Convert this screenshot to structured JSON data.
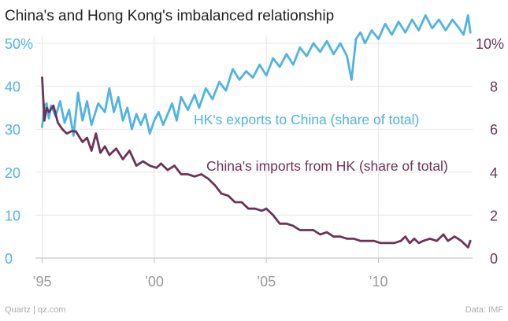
{
  "chart_data": {
    "type": "line",
    "title": "China's and Hong Kong's imbalanced relationship",
    "x_range": [
      1994.7,
      2014.2
    ],
    "x_ticks": [
      {
        "value": 1995,
        "label": "’95"
      },
      {
        "value": 2000,
        "label": "’00"
      },
      {
        "value": 2005,
        "label": "’05"
      },
      {
        "value": 2010,
        "label": "’10"
      }
    ],
    "y_left": {
      "range": [
        0,
        50
      ],
      "ticks": [
        0,
        10,
        20,
        30,
        40
      ],
      "top_label": "50%",
      "color": "#4FB3E3"
    },
    "y_right": {
      "range": [
        0,
        10
      ],
      "ticks": [
        0,
        2,
        4,
        6,
        8
      ],
      "top_label": "10%",
      "color": "#6B3354"
    },
    "grid": true,
    "series": [
      {
        "name": "HK's exports to China (share of total)",
        "axis": "left",
        "color": "#4FB3E3",
        "points": [
          [
            1995.0,
            30.5
          ],
          [
            1995.1,
            35.5
          ],
          [
            1995.2,
            36.0
          ],
          [
            1995.3,
            32.5
          ],
          [
            1995.4,
            35.5
          ],
          [
            1995.6,
            33.0
          ],
          [
            1995.8,
            36.5
          ],
          [
            1996.0,
            31.5
          ],
          [
            1996.2,
            34.5
          ],
          [
            1996.4,
            28.5
          ],
          [
            1996.6,
            38.5
          ],
          [
            1996.8,
            32.0
          ],
          [
            1997.0,
            36.5
          ],
          [
            1997.2,
            31.0
          ],
          [
            1997.5,
            36.0
          ],
          [
            1997.8,
            34.0
          ],
          [
            1998.0,
            39.5
          ],
          [
            1998.2,
            34.0
          ],
          [
            1998.4,
            37.5
          ],
          [
            1998.6,
            32.0
          ],
          [
            1998.8,
            35.0
          ],
          [
            1999.0,
            30.0
          ],
          [
            1999.2,
            33.5
          ],
          [
            1999.4,
            31.0
          ],
          [
            1999.6,
            33.5
          ],
          [
            1999.8,
            29.0
          ],
          [
            2000.0,
            32.0
          ],
          [
            2000.2,
            34.0
          ],
          [
            2000.4,
            31.0
          ],
          [
            2000.6,
            33.5
          ],
          [
            2000.8,
            36.0
          ],
          [
            2001.0,
            32.0
          ],
          [
            2001.2,
            37.5
          ],
          [
            2001.5,
            34.5
          ],
          [
            2001.8,
            38.0
          ],
          [
            2002.0,
            35.0
          ],
          [
            2002.3,
            39.5
          ],
          [
            2002.6,
            37.0
          ],
          [
            2002.9,
            41.0
          ],
          [
            2003.2,
            39.0
          ],
          [
            2003.5,
            44.0
          ],
          [
            2003.8,
            41.5
          ],
          [
            2004.1,
            43.5
          ],
          [
            2004.4,
            42.0
          ],
          [
            2004.7,
            45.0
          ],
          [
            2005.0,
            42.5
          ],
          [
            2005.3,
            46.5
          ],
          [
            2005.6,
            44.5
          ],
          [
            2005.9,
            47.5
          ],
          [
            2006.2,
            45.0
          ],
          [
            2006.5,
            49.0
          ],
          [
            2006.8,
            47.0
          ],
          [
            2007.1,
            50.0
          ],
          [
            2007.4,
            48.0
          ],
          [
            2007.7,
            50.5
          ],
          [
            2008.0,
            47.5
          ],
          [
            2008.3,
            50.0
          ],
          [
            2008.6,
            47.0
          ],
          [
            2008.8,
            41.5
          ],
          [
            2009.0,
            51.0
          ],
          [
            2009.2,
            52.5
          ],
          [
            2009.4,
            50.0
          ],
          [
            2009.7,
            53.0
          ],
          [
            2010.0,
            51.0
          ],
          [
            2010.3,
            54.5
          ],
          [
            2010.6,
            52.0
          ],
          [
            2010.9,
            55.0
          ],
          [
            2011.2,
            52.5
          ],
          [
            2011.5,
            55.5
          ],
          [
            2011.8,
            53.0
          ],
          [
            2012.1,
            56.5
          ],
          [
            2012.4,
            53.5
          ],
          [
            2012.7,
            55.5
          ],
          [
            2013.0,
            53.0
          ],
          [
            2013.3,
            55.5
          ],
          [
            2013.6,
            53.5
          ],
          [
            2013.8,
            52.0
          ],
          [
            2014.0,
            56.5
          ],
          [
            2014.1,
            52.5
          ]
        ]
      },
      {
        "name": "China's imports from HK (share of total)",
        "axis": "right",
        "color": "#6B3354",
        "points": [
          [
            1995.0,
            8.4
          ],
          [
            1995.1,
            6.4
          ],
          [
            1995.2,
            7.0
          ],
          [
            1995.3,
            6.8
          ],
          [
            1995.5,
            7.1
          ],
          [
            1995.7,
            6.3
          ],
          [
            1995.9,
            6.0
          ],
          [
            1996.1,
            5.8
          ],
          [
            1996.3,
            5.9
          ],
          [
            1996.5,
            5.9
          ],
          [
            1996.8,
            5.4
          ],
          [
            1997.0,
            5.6
          ],
          [
            1997.2,
            5.0
          ],
          [
            1997.4,
            5.8
          ],
          [
            1997.6,
            4.9
          ],
          [
            1997.8,
            5.2
          ],
          [
            1998.0,
            4.8
          ],
          [
            1998.3,
            5.1
          ],
          [
            1998.6,
            4.6
          ],
          [
            1998.9,
            5.0
          ],
          [
            1999.2,
            4.3
          ],
          [
            1999.5,
            4.5
          ],
          [
            1999.8,
            4.3
          ],
          [
            2000.1,
            4.2
          ],
          [
            2000.3,
            4.4
          ],
          [
            2000.6,
            4.1
          ],
          [
            2000.9,
            4.3
          ],
          [
            2001.2,
            3.9
          ],
          [
            2001.5,
            3.9
          ],
          [
            2001.8,
            3.8
          ],
          [
            2002.1,
            3.9
          ],
          [
            2002.4,
            3.7
          ],
          [
            2002.7,
            3.4
          ],
          [
            2003.0,
            3.0
          ],
          [
            2003.3,
            2.9
          ],
          [
            2003.6,
            2.6
          ],
          [
            2003.9,
            2.6
          ],
          [
            2004.2,
            2.3
          ],
          [
            2004.5,
            2.3
          ],
          [
            2004.8,
            2.2
          ],
          [
            2005.0,
            2.3
          ],
          [
            2005.3,
            2.0
          ],
          [
            2005.6,
            1.6
          ],
          [
            2005.9,
            1.6
          ],
          [
            2006.2,
            1.5
          ],
          [
            2006.5,
            1.3
          ],
          [
            2006.8,
            1.3
          ],
          [
            2007.1,
            1.3
          ],
          [
            2007.4,
            1.1
          ],
          [
            2007.7,
            1.2
          ],
          [
            2008.0,
            1.0
          ],
          [
            2008.3,
            1.0
          ],
          [
            2008.6,
            0.9
          ],
          [
            2008.9,
            0.9
          ],
          [
            2009.2,
            0.8
          ],
          [
            2009.5,
            0.8
          ],
          [
            2009.8,
            0.8
          ],
          [
            2010.1,
            0.7
          ],
          [
            2010.4,
            0.7
          ],
          [
            2010.7,
            0.7
          ],
          [
            2011.0,
            0.8
          ],
          [
            2011.2,
            1.0
          ],
          [
            2011.4,
            0.7
          ],
          [
            2011.6,
            0.9
          ],
          [
            2011.8,
            0.7
          ],
          [
            2012.0,
            0.8
          ],
          [
            2012.3,
            0.9
          ],
          [
            2012.6,
            0.8
          ],
          [
            2012.9,
            1.1
          ],
          [
            2013.1,
            0.8
          ],
          [
            2013.4,
            1.0
          ],
          [
            2013.7,
            0.8
          ],
          [
            2014.0,
            0.5
          ],
          [
            2014.1,
            0.8
          ]
        ]
      }
    ],
    "annotations": [
      {
        "text": "HK's exports to China (share of total)",
        "series": 0
      },
      {
        "text": "China's imports from HK (share of total)",
        "series": 1
      }
    ]
  },
  "footer": {
    "source_left": "Quartz | qz.com",
    "source_right": "Data: IMF"
  }
}
